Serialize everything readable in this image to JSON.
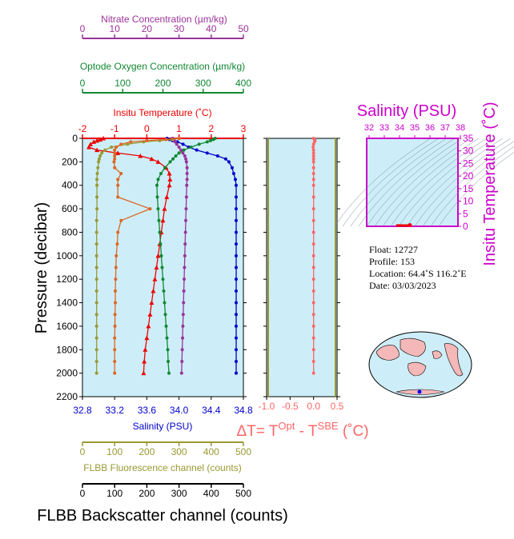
{
  "main_panel": {
    "ylabel": "Pressure (decibar)",
    "yticks": [
      0,
      200,
      400,
      600,
      800,
      1000,
      1200,
      1400,
      1600,
      1800,
      2000,
      2200
    ],
    "ylim": [
      0,
      2200
    ]
  },
  "axes": {
    "nitrate": {
      "title": "Nitrate Concentration (µm/kg)",
      "ticks": [
        0,
        10,
        20,
        30,
        40,
        50
      ],
      "range": [
        0,
        50
      ],
      "color": "#993399"
    },
    "oxygen": {
      "title": "Optode Oxygen Concentration (µm/kg)",
      "ticks": [
        0,
        100,
        200,
        300,
        400
      ],
      "range": [
        0,
        400
      ],
      "color": "#118833"
    },
    "temperature": {
      "title": "Insitu Temperature (˚C)",
      "ticks": [
        -2,
        -1,
        0,
        1,
        2,
        3
      ],
      "range": [
        -2,
        3
      ],
      "color": "#ee0000"
    },
    "salinity": {
      "title": "Salinity (PSU)",
      "ticks": [
        "32.8",
        "33.2",
        "33.6",
        "34.0",
        "34.4",
        "34.8"
      ],
      "range": [
        32.8,
        34.8
      ],
      "color": "#0000cc"
    },
    "fluorescence": {
      "title": "FLBB Fluorescence channel (counts)",
      "ticks": [
        0,
        100,
        200,
        300,
        400,
        500
      ],
      "range": [
        0,
        500
      ],
      "color": "#999933"
    },
    "backscatter": {
      "title": "FLBB Backscatter channel (counts)",
      "ticks": [
        0,
        100,
        200,
        300,
        400,
        500
      ],
      "range": [
        0,
        500
      ],
      "color": "#000000"
    }
  },
  "dt_panel": {
    "ticks": [
      "-1.0",
      "-0.5",
      "0.0",
      "0.5"
    ],
    "range": [
      -1.0,
      0.5
    ],
    "label_prefix": "ΔT= T",
    "label_sup1": "Opt",
    "label_mid": " - T",
    "label_sup2": "SBE",
    "label_suffix": " (˚C)",
    "color": "#ff6666"
  },
  "ts_panel": {
    "title": "Salinity (PSU)",
    "xticks": [
      "32",
      "33",
      "34",
      "35",
      "36",
      "37",
      "38"
    ],
    "yticks": [
      "0",
      "5",
      "10",
      "15",
      "20",
      "25",
      "30",
      "35"
    ],
    "ylabel": "Insitu Temperature (˚C)",
    "color": "#cc00cc"
  },
  "info": {
    "float": "Float:  12727",
    "profile": "Profile:  153",
    "location": "Location:  64.4˚S  116.2˚E",
    "date": "Date:  03/03/2023"
  },
  "chart_data": {
    "type": "line",
    "pressure": [
      0,
      10,
      20,
      30,
      50,
      75,
      100,
      125,
      150,
      175,
      200,
      250,
      300,
      350,
      400,
      500,
      600,
      700,
      800,
      900,
      1000,
      1100,
      1200,
      1300,
      1400,
      1500,
      1600,
      1700,
      1800,
      1900,
      2000
    ],
    "series": [
      {
        "key": "temperature",
        "color": "#ee0000",
        "marker": "triangle",
        "values": [
          -1.35,
          -1.45,
          -1.55,
          -1.65,
          -1.75,
          -1.8,
          -1.55,
          -0.9,
          -0.2,
          0.15,
          0.35,
          0.6,
          0.7,
          0.72,
          0.7,
          0.62,
          0.55,
          0.5,
          0.45,
          0.4,
          0.35,
          0.3,
          0.25,
          0.2,
          0.15,
          0.1,
          0.05,
          0.0,
          -0.05,
          -0.08,
          -0.1
        ]
      },
      {
        "key": "salinity",
        "color": "#0000cc",
        "marker": "circle",
        "values": [
          33.85,
          33.88,
          33.92,
          33.98,
          34.05,
          34.12,
          34.22,
          34.35,
          34.48,
          34.58,
          34.62,
          34.66,
          34.68,
          34.7,
          34.71,
          34.71,
          34.71,
          34.71,
          34.71,
          34.71,
          34.71,
          34.71,
          34.71,
          34.71,
          34.71,
          34.71,
          34.71,
          34.71,
          34.71,
          34.71,
          34.71
        ]
      },
      {
        "key": "oxygen",
        "color": "#118833",
        "marker": "circle",
        "values": [
          330,
          325,
          318,
          310,
          290,
          270,
          252,
          240,
          232,
          225,
          218,
          205,
          195,
          188,
          185,
          186,
          188,
          190,
          192,
          194,
          196,
          198,
          200,
          202,
          204,
          206,
          208,
          210,
          212,
          213,
          215
        ]
      },
      {
        "key": "nitrate",
        "color": "#993399",
        "marker": "circle",
        "values": [
          28.0,
          28.2,
          28.5,
          28.8,
          29.3,
          30.0,
          30.6,
          31.2,
          31.8,
          32.1,
          32.3,
          32.5,
          32.5,
          32.5,
          32.4,
          32.3,
          32.2,
          32.1,
          32.0,
          31.9,
          31.8,
          31.7,
          31.6,
          31.5,
          31.4,
          31.3,
          31.2,
          31.1,
          31.0,
          30.9,
          30.8
        ]
      },
      {
        "key": "fluorescence",
        "color": "#999933",
        "marker": "circle",
        "values": [
          300,
          280,
          240,
          190,
          140,
          90,
          70,
          60,
          55,
          52,
          50,
          48,
          46,
          45,
          45,
          45,
          45,
          44,
          44,
          44,
          44,
          44,
          44,
          44,
          44,
          44,
          44,
          44,
          44,
          44,
          44
        ]
      },
      {
        "key": "backscatter",
        "color": "#dd6622",
        "marker": "circle",
        "values": [
          300,
          260,
          200,
          150,
          120,
          105,
          100,
          100,
          100,
          100,
          98,
          100,
          120,
          110,
          110,
          110,
          210,
          120,
          110,
          108,
          105,
          104,
          103,
          102,
          102,
          101,
          101,
          100,
          100,
          100,
          100
        ]
      }
    ],
    "delta_t": [
      0.0,
      0.02,
      0.03,
      0.02,
      0.0,
      -0.01,
      0.0,
      0.0,
      0.0,
      0.0,
      0.0,
      0.0,
      0.0,
      0.0,
      0.0,
      0.0,
      0.0,
      0.0,
      0.0,
      0.0,
      0.0,
      0.0,
      0.0,
      0.0,
      0.0,
      0.0,
      0.0,
      0.0,
      0.0,
      0.0,
      0.0
    ]
  }
}
